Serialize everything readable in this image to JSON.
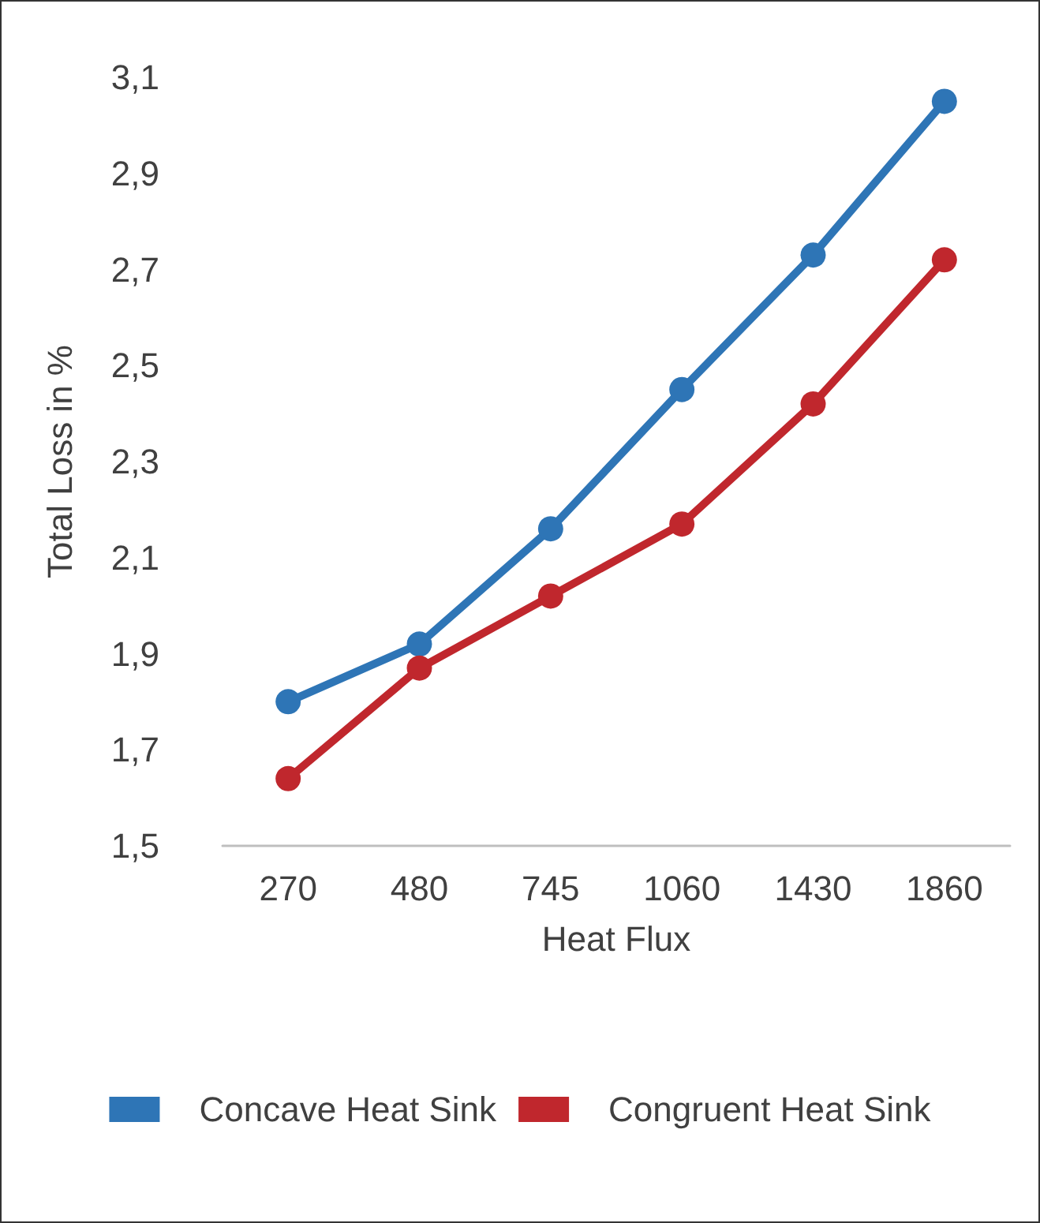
{
  "chart_data": {
    "type": "line",
    "xlabel": "Heat Flux",
    "ylabel": "Total Loss in %",
    "categories": [
      "270",
      "480",
      "745",
      "1060",
      "1430",
      "1860"
    ],
    "series": [
      {
        "name": "Concave Heat Sink",
        "color": "#2e75b6",
        "values": [
          1.8,
          1.92,
          2.16,
          2.45,
          2.73,
          3.05
        ]
      },
      {
        "name": "Congruent Heat Sink",
        "color": "#c0272d",
        "values": [
          1.64,
          1.87,
          2.02,
          2.17,
          2.42,
          2.72
        ]
      }
    ],
    "ylim": [
      1.5,
      3.1
    ],
    "yticks": [
      {
        "value": 1.5,
        "label": "1,5"
      },
      {
        "value": 1.7,
        "label": "1,7"
      },
      {
        "value": 1.9,
        "label": "1,9"
      },
      {
        "value": 2.1,
        "label": "2,1"
      },
      {
        "value": 2.3,
        "label": "2,3"
      },
      {
        "value": 2.5,
        "label": "2,5"
      },
      {
        "value": 2.7,
        "label": "2,7"
      },
      {
        "value": 2.9,
        "label": "2,9"
      },
      {
        "value": 3.1,
        "label": "3,1"
      }
    ],
    "grid": false,
    "legend": "bottom",
    "marker": "circle",
    "line_style": "solid"
  }
}
